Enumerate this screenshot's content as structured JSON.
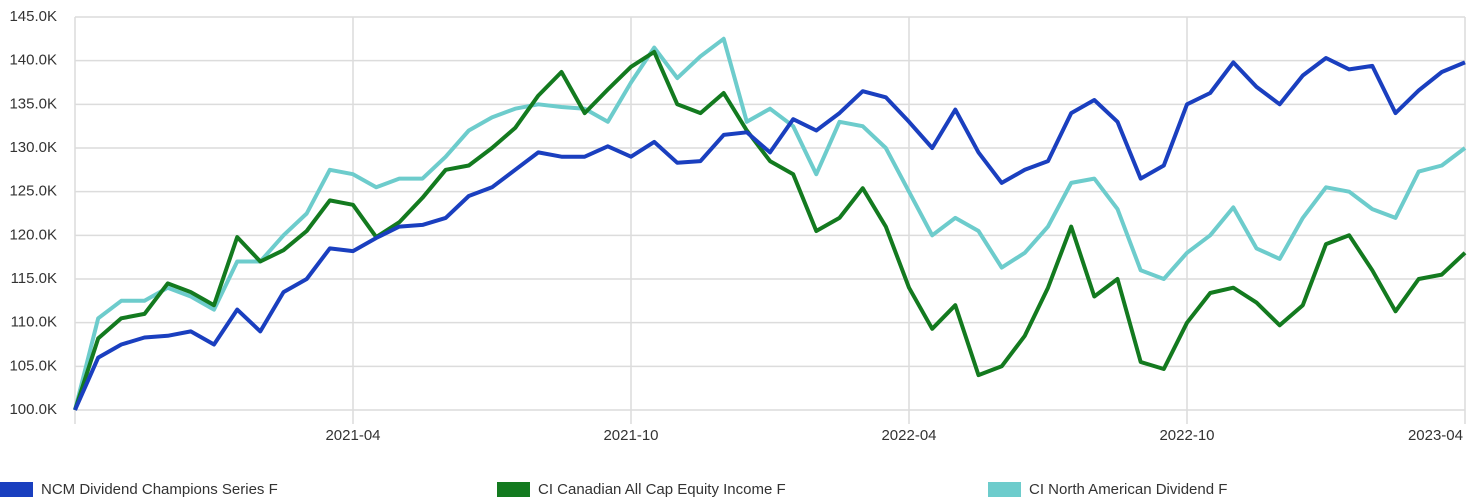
{
  "chart_data": {
    "type": "line",
    "categories": [
      null,
      null,
      null,
      null,
      null,
      null,
      null,
      null,
      null,
      null,
      null,
      null,
      "2021-04",
      null,
      null,
      null,
      null,
      null,
      null,
      null,
      null,
      null,
      null,
      null,
      "2021-10",
      null,
      null,
      null,
      null,
      null,
      null,
      null,
      null,
      null,
      null,
      null,
      "2022-04",
      null,
      null,
      null,
      null,
      null,
      null,
      null,
      null,
      null,
      null,
      null,
      "2022-10",
      null,
      null,
      null,
      null,
      null,
      null,
      null,
      null,
      null,
      null,
      null,
      "2023-04"
    ],
    "series": [
      {
        "name": "NCM Dividend Champions Series F",
        "color": "#1a3fbf",
        "values": [
          100000,
          106000,
          107500,
          108300,
          108500,
          109000,
          107500,
          111500,
          109000,
          113500,
          115000,
          118500,
          118200,
          119700,
          121000,
          121200,
          122000,
          124500,
          125500,
          127500,
          129500,
          129000,
          129000,
          130200,
          129000,
          130700,
          128300,
          128500,
          131500,
          131800,
          129500,
          133300,
          132000,
          134000,
          136500,
          135800,
          133000,
          130000,
          134400,
          129500,
          126000,
          127500,
          128500,
          134000,
          135500,
          133000,
          126500,
          128000,
          135000,
          136300,
          139800,
          137000,
          135000,
          138300,
          140300,
          139000,
          139400,
          134000,
          136600,
          138700,
          139800
        ]
      },
      {
        "name": "CI Canadian All Cap Equity Income F",
        "color": "#137a1f",
        "values": [
          100000,
          108200,
          110500,
          111000,
          114500,
          113500,
          112000,
          119800,
          117000,
          118300,
          120500,
          124000,
          123500,
          119800,
          121500,
          124300,
          127500,
          128000,
          130000,
          132300,
          136000,
          138700,
          134000,
          136700,
          139300,
          141000,
          135000,
          134000,
          136300,
          132000,
          128500,
          127000,
          120500,
          122000,
          125400,
          121000,
          114000,
          109300,
          112000,
          104000,
          105000,
          108500,
          114000,
          121000,
          113000,
          115000,
          105500,
          104700,
          110000,
          113400,
          114000,
          112300,
          109700,
          112000,
          119000,
          120000,
          116000,
          111300,
          115000,
          115500,
          118000
        ]
      },
      {
        "name": "CI North American Dividend F",
        "color": "#6dcccc",
        "values": [
          100000,
          110500,
          112500,
          112500,
          114000,
          113000,
          111500,
          117000,
          117000,
          120000,
          122500,
          127500,
          127000,
          125500,
          126500,
          126500,
          129000,
          132000,
          133500,
          134500,
          135000,
          134700,
          134500,
          133000,
          137500,
          141500,
          138000,
          140500,
          142500,
          133000,
          134500,
          132500,
          127000,
          133000,
          132500,
          130000,
          125000,
          120000,
          122000,
          120500,
          116300,
          118000,
          121000,
          126000,
          126500,
          123000,
          116000,
          115000,
          118000,
          120000,
          123200,
          118500,
          117300,
          122000,
          125500,
          125000,
          123000,
          122000,
          127300,
          128000,
          130000
        ]
      }
    ],
    "ylim": [
      100000,
      145000
    ],
    "yticks": [
      {
        "value": 100000,
        "label": "100.0K"
      },
      {
        "value": 105000,
        "label": "105.0K"
      },
      {
        "value": 110000,
        "label": "110.0K"
      },
      {
        "value": 115000,
        "label": "115.0K"
      },
      {
        "value": 120000,
        "label": "120.0K"
      },
      {
        "value": 125000,
        "label": "125.0K"
      },
      {
        "value": 130000,
        "label": "130.0K"
      },
      {
        "value": 135000,
        "label": "135.0K"
      },
      {
        "value": 140000,
        "label": "140.0K"
      },
      {
        "value": 145000,
        "label": "145.0K"
      }
    ],
    "grid": true,
    "legend": "bottom"
  }
}
